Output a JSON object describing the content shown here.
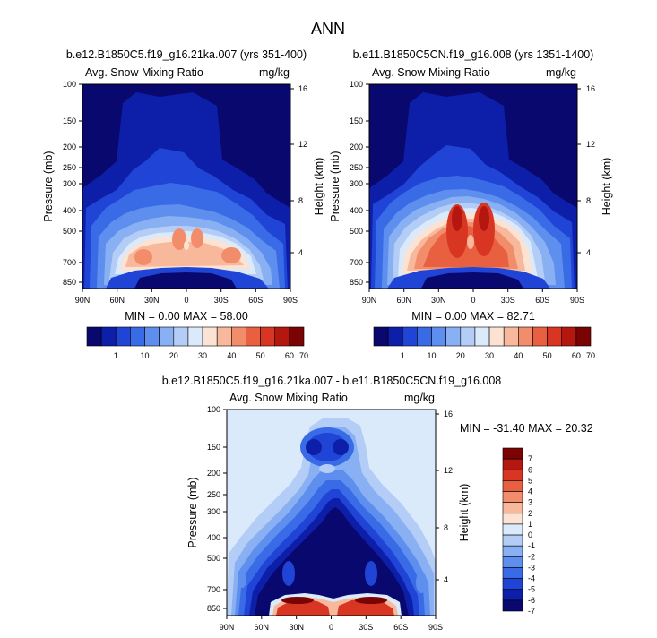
{
  "figure": {
    "title": "ANN"
  },
  "chart_data": [
    {
      "type": "heatmap",
      "title": "b.e12.B1850C5.f19_g16.21ka.007 (yrs 351-400)",
      "left_subtitle": "Avg. Snow Mixing Ratio",
      "right_subtitle": "mg/kg",
      "xlabel": "",
      "ylabel": "Pressure (mb)",
      "ylabel_right": "Height (km)",
      "x_ticks": [
        "90N",
        "60N",
        "30N",
        "0",
        "30S",
        "60S",
        "90S"
      ],
      "y_ticks": [
        "100",
        "150",
        "200",
        "250",
        "300",
        "400",
        "500",
        "700",
        "850"
      ],
      "y_ticks_right": [
        "16",
        "12",
        "8",
        "4"
      ],
      "stats_text": "MIN =   0.00   MAX =  58.00",
      "min": 0.0,
      "max": 58.0,
      "colorbar_levels": [
        "1",
        "10",
        "20",
        "30",
        "40",
        "50",
        "60",
        "70"
      ]
    },
    {
      "type": "heatmap",
      "title": "b.e11.B1850C5CN.f19_g16.008 (yrs 1351-1400)",
      "left_subtitle": "Avg. Snow Mixing Ratio",
      "right_subtitle": "mg/kg",
      "xlabel": "",
      "ylabel": "Pressure (mb)",
      "ylabel_right": "Height (km)",
      "x_ticks": [
        "90N",
        "60N",
        "30N",
        "0",
        "30S",
        "60S",
        "90S"
      ],
      "y_ticks": [
        "100",
        "150",
        "200",
        "250",
        "300",
        "400",
        "500",
        "700",
        "850"
      ],
      "y_ticks_right": [
        "16",
        "12",
        "8",
        "4"
      ],
      "stats_text": "MIN =   0.00   MAX =  82.71",
      "min": 0.0,
      "max": 82.71,
      "colorbar_levels": [
        "1",
        "10",
        "20",
        "30",
        "40",
        "50",
        "60",
        "70"
      ]
    },
    {
      "type": "heatmap",
      "title": "b.e12.B1850C5.f19_g16.21ka.007 - b.e11.B1850C5CN.f19_g16.008",
      "left_subtitle": "Avg. Snow Mixing Ratio",
      "right_subtitle": "mg/kg",
      "xlabel": "",
      "ylabel": "Pressure (mb)",
      "ylabel_right": "Height (km)",
      "x_ticks": [
        "90N",
        "60N",
        "30N",
        "0",
        "30S",
        "60S",
        "90S"
      ],
      "y_ticks": [
        "100",
        "150",
        "200",
        "250",
        "300",
        "400",
        "500",
        "700",
        "850"
      ],
      "y_ticks_right": [
        "16",
        "12",
        "8",
        "4"
      ],
      "stats_text": "MIN = -31.40   MAX =  20.32",
      "min": -31.4,
      "max": 20.32,
      "colorbar_levels": [
        "7",
        "6",
        "5",
        "4",
        "3",
        "2",
        "1",
        "0",
        "-1",
        "-2",
        "-3",
        "-4",
        "-5",
        "-6",
        "-7"
      ]
    }
  ],
  "colors": {
    "seq_palette": [
      "#08086f",
      "#0d1fa8",
      "#1f44d6",
      "#3a6be6",
      "#5e8fee",
      "#89b0f2",
      "#b4cdf7",
      "#daeafb",
      "#fce2d2",
      "#f8b89b",
      "#f28d6c",
      "#e8603f",
      "#d83622",
      "#b4170f",
      "#7a0303"
    ],
    "diff_palette": [
      "#08086f",
      "#0d1fa8",
      "#1f44d6",
      "#3a6be6",
      "#5e8fee",
      "#89b0f2",
      "#b4cdf7",
      "#daeafb",
      "#fce2d2",
      "#f8b89b",
      "#f28d6c",
      "#e8603f",
      "#d83622",
      "#b4170f",
      "#7a0303"
    ]
  }
}
